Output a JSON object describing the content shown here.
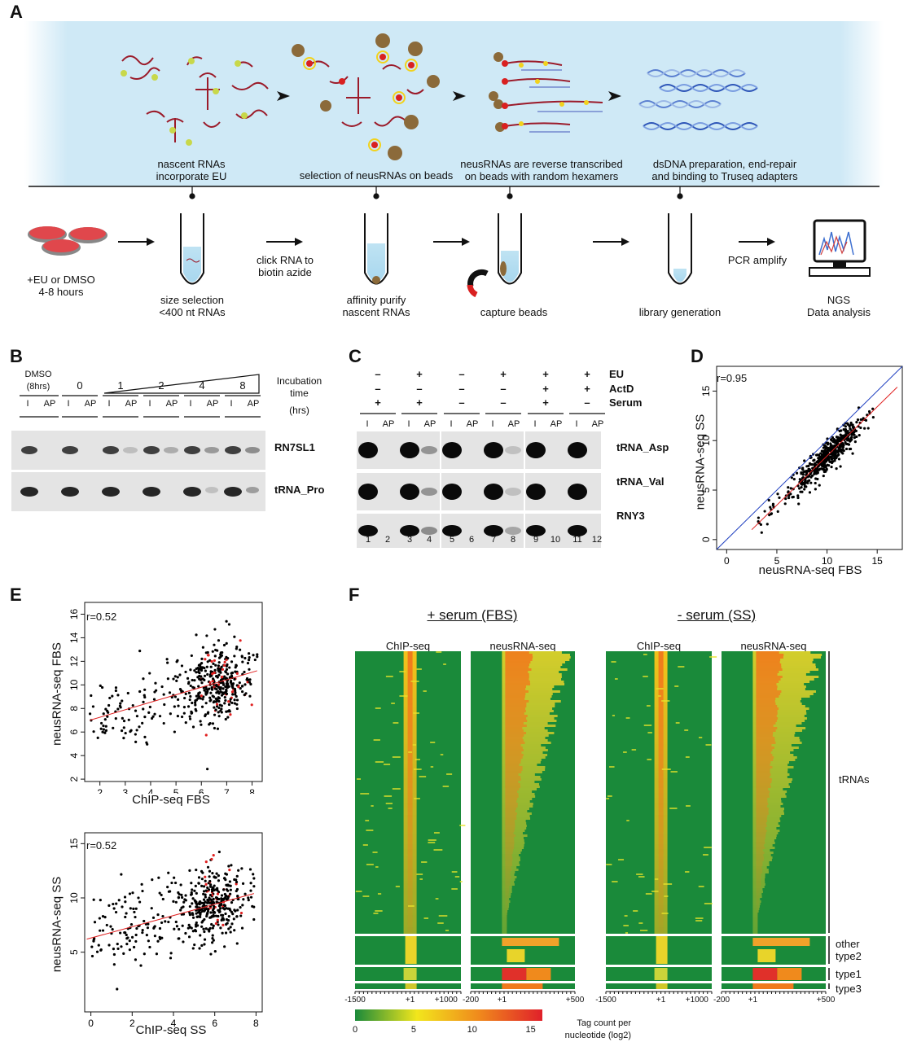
{
  "panels": {
    "A": "A",
    "B": "B",
    "C": "C",
    "D": "D",
    "E": "E",
    "F": "F"
  },
  "panelA": {
    "top_captions": [
      "nascent RNAs\nincorporate EU",
      "selection of neusRNAs on beads",
      "neusRNAs are reverse transcribed\non beads with random hexamers",
      "dsDNA preparation, end-repair\nand binding to Truseq adapters"
    ],
    "bottom_captions": [
      "+EU or DMSO\n4-8 hours",
      "size selection\n<400 nt RNAs",
      "affinity purify\nnascent RNAs",
      "capture beads",
      "library generation",
      "NGS\nData analysis"
    ],
    "arrow_labels": [
      "click RNA to\nbiotin azide",
      "PCR amplify"
    ],
    "colors": {
      "background": "#cfe9f6",
      "rna": "#9b1b2a",
      "eu_dot": "#c8d84a",
      "bead": "#8b6a3a",
      "dish": "#e0474c"
    }
  },
  "panelB": {
    "dmso_label": "DMSO\n(8hrs)",
    "timepoints": [
      "0",
      "1",
      "2",
      "4",
      "8"
    ],
    "incubation_label": "Incubation\ntime",
    "hrs_label": "(hrs)",
    "lane_labels": [
      "I",
      "AP"
    ],
    "blots": [
      "RN7SL1",
      "tRNA_Pro"
    ]
  },
  "panelC": {
    "row_labels": [
      "EU",
      "ActD",
      "Serum"
    ],
    "conditions": [
      [
        "–",
        "–",
        "+"
      ],
      [
        "+",
        "–",
        "+"
      ],
      [
        "–",
        "–",
        "–"
      ],
      [
        "+",
        "–",
        "–"
      ],
      [
        "+",
        "+",
        "+"
      ],
      [
        "+",
        "+",
        "–"
      ]
    ],
    "lane_labels": [
      "I",
      "AP"
    ],
    "blots": [
      "tRNA_Asp",
      "tRNA_Val",
      "RNY3"
    ],
    "lane_numbers": [
      "1",
      "2",
      "3",
      "4",
      "5",
      "6",
      "7",
      "8",
      "9",
      "10",
      "11",
      "12"
    ]
  },
  "chart_data": [
    {
      "panel": "D",
      "type": "scatter",
      "xlabel": "neusRNA-seq FBS",
      "ylabel": "neusRNA-seq SS",
      "annotation": "r=0.95",
      "xticks": [
        0,
        5,
        10,
        15
      ],
      "yticks": [
        0,
        5,
        10,
        15
      ],
      "xlim": [
        -1,
        17.5
      ],
      "ylim": [
        -1,
        17.5
      ],
      "fit_line": {
        "x": [
          2.5,
          17
        ],
        "y": [
          1.0,
          15.4
        ],
        "color": "#e02020"
      },
      "identity_line": {
        "x": [
          -1,
          17.5
        ],
        "y": [
          -1,
          17.5
        ],
        "color": "#2040c0"
      }
    },
    {
      "panel": "E-top",
      "type": "scatter",
      "xlabel": "ChIP-seq FBS",
      "ylabel": "neusRNA-seq FBS",
      "annotation": "r=0.52",
      "xticks": [
        2,
        3,
        4,
        5,
        6,
        7,
        8
      ],
      "yticks": [
        2,
        4,
        6,
        8,
        10,
        12,
        14,
        16
      ],
      "xlim": [
        1.4,
        8.4
      ],
      "ylim": [
        1.8,
        17.0
      ],
      "fit_line": {
        "x": [
          1.6,
          8.2
        ],
        "y": [
          7.0,
          11.2
        ],
        "color": "#e02020"
      }
    },
    {
      "panel": "E-bottom",
      "type": "scatter",
      "xlabel": "ChIP-seq SS",
      "ylabel": "neusRNA-seq SS",
      "annotation": "r=0.52",
      "xticks": [
        0,
        2,
        4,
        6,
        8
      ],
      "yticks": [
        5,
        10,
        15
      ],
      "xlim": [
        -0.3,
        8.3
      ],
      "ylim": [
        -0.5,
        16.0
      ],
      "fit_line": {
        "x": [
          -0.2,
          7.9
        ],
        "y": [
          6.2,
          10.4
        ],
        "color": "#e02020"
      }
    },
    {
      "panel": "F",
      "type": "heatmap",
      "condition_titles": [
        "+ serum (FBS)",
        "- serum (SS)"
      ],
      "column_titles": [
        "ChIP-seq",
        "neusRNA-seq",
        "ChIP-seq",
        "neusRNA-seq"
      ],
      "group_labels": [
        "tRNAs",
        "other\ntype2",
        "type1",
        "type3"
      ],
      "chip_ticks": [
        "-1500",
        "+1",
        "+1000"
      ],
      "neus_ticks": [
        "-200",
        "+1",
        "+500"
      ],
      "colorbar": {
        "ticks": [
          "0",
          "5",
          "10",
          "15"
        ],
        "label": "Tag count per\nnucleotide (log2)",
        "colors": [
          "#1a8a3a",
          "#f2e61c",
          "#f08a1c",
          "#e0202a"
        ]
      }
    }
  ]
}
